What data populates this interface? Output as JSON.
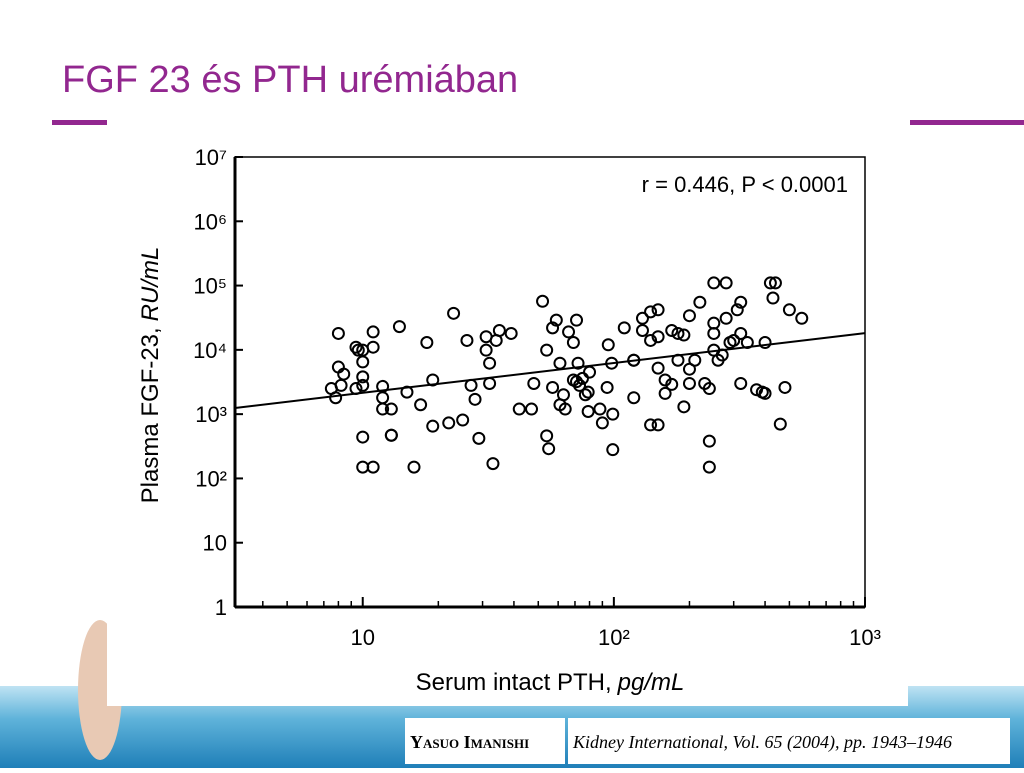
{
  "slide": {
    "title": "FGF 23 és PTH urémiában"
  },
  "citation": {
    "author": "Yasuo Imanishi",
    "reference": "Kidney International, Vol. 65 (2004), pp. 1943–1946"
  },
  "chart_data": {
    "type": "scatter",
    "annotation": "r = 0.446, P < 0.0001",
    "x_label": "Serum intact PTH,",
    "x_label_unit": "pg/mL",
    "y_label": "Plasma FGF-23,",
    "y_label_unit": "RU/mL",
    "xscale": "log",
    "yscale": "log",
    "xlim": [
      3.1,
      1000
    ],
    "ylim": [
      1,
      10000000
    ],
    "xticks": [
      10,
      {
        "value": 100,
        "label": "10²"
      },
      {
        "value": 1000,
        "label": "10³"
      }
    ],
    "xticks_minor": [
      4,
      5,
      6,
      7,
      8,
      9,
      20,
      30,
      40,
      50,
      60,
      70,
      80,
      90,
      200,
      300,
      400,
      500,
      600,
      700,
      800,
      900
    ],
    "yticks": [
      1,
      10,
      {
        "value": 100,
        "label": "10²"
      },
      {
        "value": 1000,
        "label": "10³"
      },
      {
        "value": 10000,
        "label": "10⁴"
      },
      {
        "value": 100000,
        "label": "10⁵"
      },
      {
        "value": 1000000,
        "label": "10⁶"
      },
      {
        "value": 10000000,
        "label": "10⁷"
      }
    ],
    "marker_color": "#000000",
    "fit_line": {
      "x": [
        3.1,
        1000
      ],
      "y": [
        1245,
        18200
      ],
      "color": "#000000"
    },
    "x": [
      8.0,
      8.0,
      8.4,
      7.5,
      7.8,
      8.2,
      9.6,
      9.4,
      10,
      11,
      11,
      9.4,
      10,
      10,
      10,
      12,
      12,
      12,
      13,
      10,
      10,
      11,
      13,
      13,
      14,
      15,
      16,
      17,
      18,
      19,
      19,
      22,
      23,
      25,
      26,
      27,
      28,
      29,
      31,
      32,
      32,
      31,
      34,
      33,
      35,
      39,
      42,
      47,
      48,
      52,
      54,
      54,
      55,
      57,
      59,
      57,
      61,
      63,
      61,
      64,
      66,
      69,
      71,
      72,
      69,
      73,
      75,
      77,
      79,
      79,
      71,
      80,
      88,
      90,
      94,
      95,
      98,
      99,
      99,
      110,
      120,
      120,
      120,
      130,
      130,
      140,
      140,
      140,
      150,
      150,
      150,
      150,
      160,
      160,
      170,
      170,
      180,
      180,
      190,
      190,
      200,
      200,
      200,
      210,
      220,
      230,
      240,
      240,
      240,
      250,
      250,
      250,
      250,
      260,
      270,
      280,
      280,
      290,
      300,
      310,
      320,
      320,
      320,
      340,
      370,
      390,
      400,
      400,
      420,
      430,
      440,
      460,
      480,
      500,
      560
    ],
    "y": [
      18000,
      5400,
      4200,
      2500,
      1800,
      2800,
      9900,
      11000,
      9900,
      11000,
      19000,
      2500,
      2800,
      6500,
      3800,
      2700,
      1800,
      1200,
      1200,
      440,
      150,
      150,
      470,
      470,
      23000,
      2200,
      150,
      1400,
      13000,
      3400,
      650,
      730,
      37000,
      810,
      14000,
      2800,
      1700,
      420,
      16000,
      6200,
      3000,
      9900,
      14000,
      170,
      20000,
      18000,
      1200,
      1200,
      3000,
      57000,
      9900,
      460,
      290,
      22000,
      29000,
      2600,
      6200,
      2000,
      1400,
      1200,
      19000,
      13000,
      29000,
      6200,
      3400,
      2800,
      3600,
      2000,
      2200,
      1100,
      3200,
      4500,
      1200,
      730,
      2600,
      12000,
      6200,
      1000,
      280,
      22000,
      6900,
      6900,
      1800,
      20000,
      31000,
      680,
      14000,
      39000,
      680,
      16000,
      5200,
      42000,
      3400,
      2100,
      20000,
      2900,
      6900,
      18000,
      1300,
      17000,
      5000,
      3000,
      34000,
      6900,
      55000,
      3000,
      2500,
      380,
      150,
      110000,
      9900,
      26000,
      18000,
      6900,
      8300,
      31000,
      110000,
      13000,
      14000,
      42000,
      55000,
      18000,
      3000,
      13000,
      2400,
      2200,
      2100,
      13000,
      110000,
      64000,
      110000,
      700,
      2600,
      42000,
      31000
    ]
  }
}
